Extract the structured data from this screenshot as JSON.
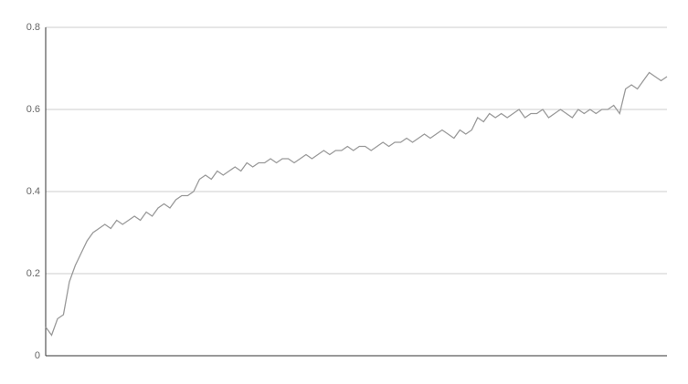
{
  "chart_data": {
    "type": "line",
    "values": [
      0.07,
      0.05,
      0.09,
      0.1,
      0.18,
      0.22,
      0.25,
      0.28,
      0.3,
      0.31,
      0.32,
      0.31,
      0.33,
      0.32,
      0.33,
      0.34,
      0.33,
      0.35,
      0.34,
      0.36,
      0.37,
      0.36,
      0.38,
      0.39,
      0.39,
      0.4,
      0.43,
      0.44,
      0.43,
      0.45,
      0.44,
      0.45,
      0.46,
      0.45,
      0.47,
      0.46,
      0.47,
      0.47,
      0.48,
      0.47,
      0.48,
      0.48,
      0.47,
      0.48,
      0.49,
      0.48,
      0.49,
      0.5,
      0.49,
      0.5,
      0.5,
      0.51,
      0.5,
      0.51,
      0.51,
      0.5,
      0.51,
      0.52,
      0.51,
      0.52,
      0.52,
      0.53,
      0.52,
      0.53,
      0.54,
      0.53,
      0.54,
      0.55,
      0.54,
      0.53,
      0.55,
      0.54,
      0.55,
      0.58,
      0.57,
      0.59,
      0.58,
      0.59,
      0.58,
      0.59,
      0.6,
      0.58,
      0.59,
      0.59,
      0.6,
      0.58,
      0.59,
      0.6,
      0.59,
      0.58,
      0.6,
      0.59,
      0.6,
      0.59,
      0.6,
      0.6,
      0.61,
      0.59,
      0.65,
      0.66,
      0.65,
      0.67,
      0.69,
      0.68,
      0.67,
      0.68
    ],
    "color": "#999999",
    "ylim": [
      0,
      0.8
    ],
    "yticks": [
      0,
      0.2,
      0.4,
      0.6,
      0.8
    ],
    "grid": true
  }
}
